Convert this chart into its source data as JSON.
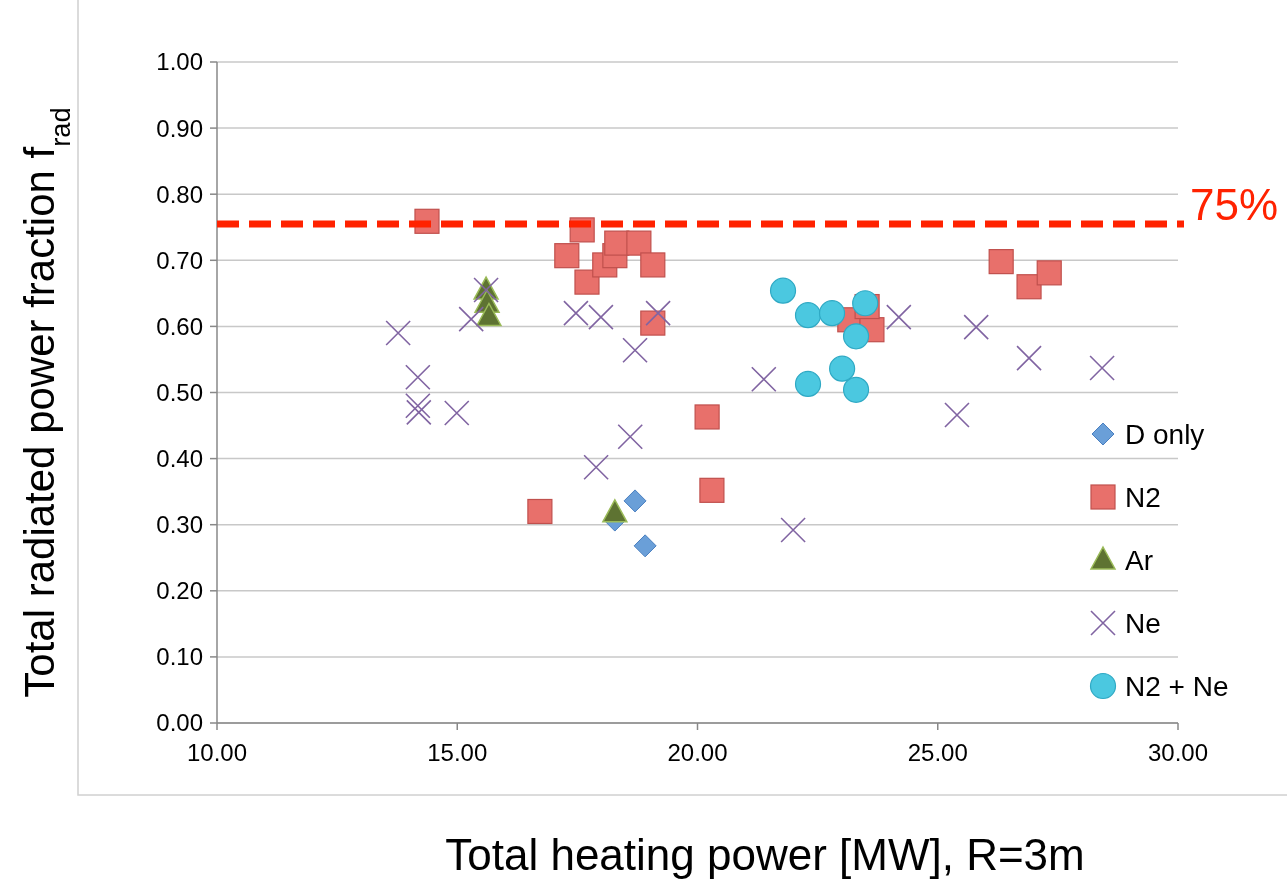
{
  "chart_data": {
    "type": "scatter",
    "xlabel": "Total heating power [MW], R=3m",
    "ylabel": "Total radiated power fraction f$_{rad}$",
    "xlim": [
      10,
      30
    ],
    "xticks": [
      {
        "value": 10,
        "label": "10.00"
      },
      {
        "value": 15,
        "label": "15.00"
      },
      {
        "value": 20,
        "label": "20.00"
      },
      {
        "value": 25,
        "label": "25.00"
      },
      {
        "value": 30,
        "label": "30.00"
      }
    ],
    "ylim": [
      0,
      1
    ],
    "yticks": [
      {
        "value": 0,
        "label": "0.00"
      },
      {
        "value": 0.1,
        "label": "0.10"
      },
      {
        "value": 0.2,
        "label": "0.20"
      },
      {
        "value": 0.3,
        "label": "0.30"
      },
      {
        "value": 0.4,
        "label": "0.40"
      },
      {
        "value": 0.5,
        "label": "0.50"
      },
      {
        "value": 0.6,
        "label": "0.60"
      },
      {
        "value": 0.7,
        "label": "0.70"
      },
      {
        "value": 0.8,
        "label": "0.80"
      },
      {
        "value": 0.9,
        "label": "0.90"
      },
      {
        "value": 1,
        "label": "1.00"
      }
    ],
    "grid": "y",
    "legend": "bottom right",
    "ref_lines": [
      {
        "axis": "y",
        "value": 0.755,
        "label": "75%",
        "color": "#ff2200",
        "line_style": "dashed"
      }
    ],
    "series": [
      {
        "name": "D only",
        "color": "#6a9fd8",
        "marker": "diamond",
        "x": [
          18.7,
          18.28,
          18.91
        ],
        "values": [
          0.336,
          0.307,
          0.268
        ]
      },
      {
        "name": "N2",
        "color": "#e8706b",
        "marker": "square",
        "x": [
          14.37,
          17.6,
          17.28,
          17.7,
          18.07,
          18.28,
          18.32,
          18.78,
          19.07,
          19.07,
          16.72,
          20.2,
          20.3,
          23.17,
          23.63,
          23.53,
          26.32,
          26.9,
          27.32
        ],
        "values": [
          0.759,
          0.746,
          0.707,
          0.667,
          0.693,
          0.707,
          0.726,
          0.726,
          0.693,
          0.605,
          0.32,
          0.463,
          0.352,
          0.61,
          0.595,
          0.63,
          0.698,
          0.66,
          0.681
        ]
      },
      {
        "name": "Ar",
        "color": "#5e7332",
        "marker": "triangle",
        "x": [
          15.6,
          15.62,
          15.66,
          18.28
        ],
        "values": [
          0.655,
          0.635,
          0.615,
          0.318
        ]
      },
      {
        "name": "Ne",
        "color": "#8064a2",
        "marker": "cross",
        "x": [
          13.77,
          14.18,
          14.18,
          14.2,
          14.99,
          15.29,
          15.6,
          17.47,
          17.99,
          19.18,
          18.7,
          18.6,
          17.89,
          21.99,
          21.38,
          24.19,
          28.42,
          26.9,
          25.8,
          25.4
        ],
        "values": [
          0.59,
          0.523,
          0.48,
          0.47,
          0.469,
          0.611,
          0.655,
          0.62,
          0.614,
          0.62,
          0.564,
          0.433,
          0.387,
          0.292,
          0.52,
          0.614,
          0.537,
          0.552,
          0.599,
          0.466
        ]
      },
      {
        "name": "N2 + Ne",
        "color": "#4bc8e0",
        "marker": "circle",
        "x": [
          21.78,
          22.3,
          22.8,
          23.49,
          23.3,
          22.3,
          23.01,
          23.3
        ],
        "values": [
          0.654,
          0.617,
          0.62,
          0.635,
          0.585,
          0.513,
          0.536,
          0.504
        ]
      }
    ]
  }
}
